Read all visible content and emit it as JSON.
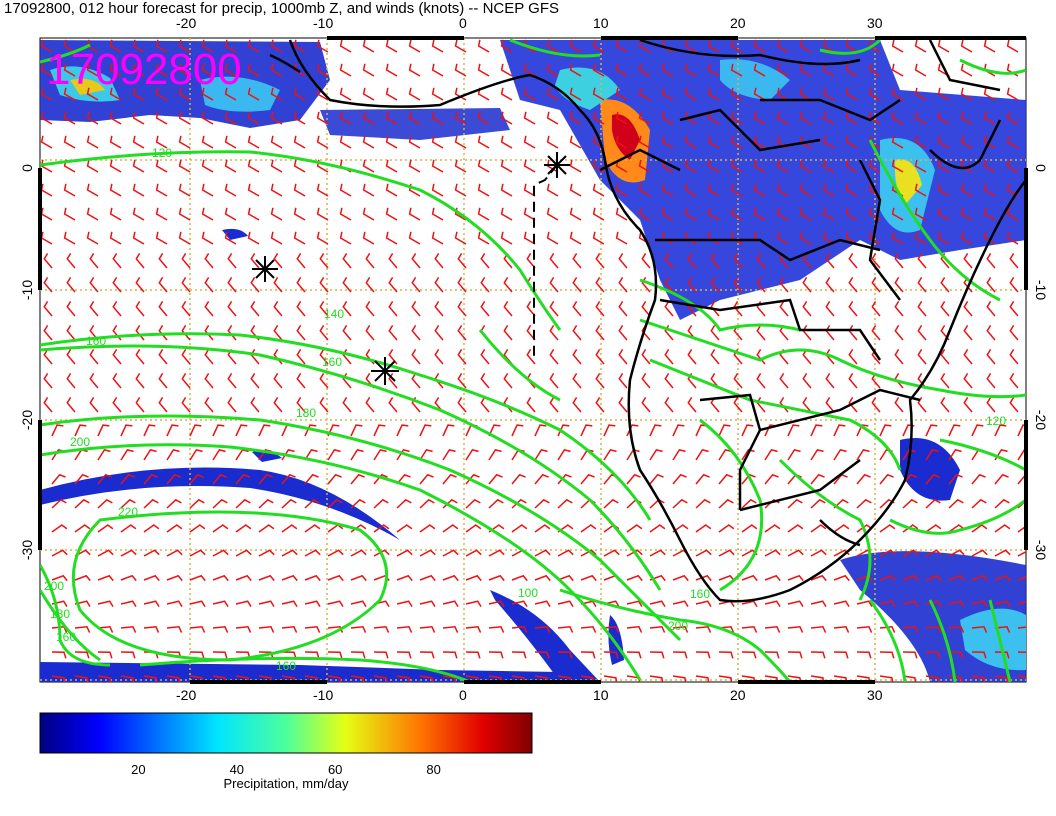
{
  "title": "17092800, 012 hour forecast for precip, 1000mb Z, and winds (knots) -- NCEP GFS",
  "stamp": "17092800",
  "map": {
    "lon_ticks": [
      "-20",
      "-10",
      "0",
      "10",
      "20",
      "30"
    ],
    "lat_ticks": [
      "0",
      "-10",
      "-20",
      "-30"
    ],
    "contour_labels": [
      "120",
      "140",
      "160",
      "160",
      "180",
      "200",
      "220",
      "200",
      "180",
      "160",
      "160",
      "200",
      "160",
      "100",
      "120"
    ],
    "colors": {
      "contour": "#22dd22",
      "wind": "#ee1111",
      "coast": "#000000",
      "grid": "#d8b24a",
      "stamp": "#ff00ff"
    }
  },
  "colorbar": {
    "title": "Precipitation, mm/day",
    "labels": [
      "20",
      "40",
      "60",
      "80"
    ],
    "values": [
      20,
      40,
      60,
      80
    ],
    "range": [
      0,
      100
    ],
    "colormap": "jet"
  },
  "icons": [
    "storm-marker-icon",
    "storm-marker-icon",
    "storm-marker-icon"
  ]
}
